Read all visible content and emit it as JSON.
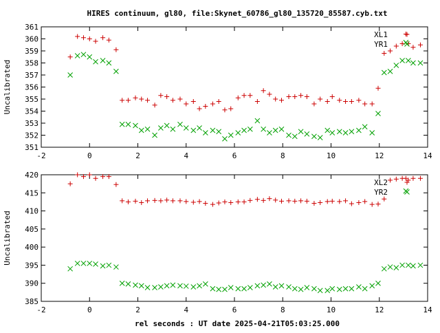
{
  "title": "HIRES continuum, gl80, file:Skynet_60786_gl80_135720_85587.cyb.txt",
  "xlabel": "rel seconds : UT date 2025-04-21T05:03:25.000",
  "colors": {
    "red": "#cc0000",
    "green": "#00a000",
    "axis": "#000000"
  },
  "chart_data": [
    {
      "type": "scatter",
      "xlabel": "",
      "ylabel": "Uncalibrated",
      "xlim": [
        -2,
        14
      ],
      "ylim": [
        351,
        361
      ],
      "xticks": [
        "-2",
        "0",
        "2",
        "4",
        "6",
        "8",
        "10",
        "12",
        "14"
      ],
      "yticks": [
        "351",
        "352",
        "353",
        "354",
        "355",
        "356",
        "357",
        "358",
        "359",
        "360",
        "361"
      ],
      "legend": "top-right",
      "series": [
        {
          "name": "XL1",
          "marker": "plus",
          "color": "#cc0000",
          "x": [
            -0.8,
            -0.5,
            -0.25,
            0,
            0.25,
            0.55,
            0.8,
            1.1,
            1.35,
            1.6,
            1.9,
            2.15,
            2.4,
            2.7,
            2.95,
            3.2,
            3.45,
            3.75,
            4.0,
            4.3,
            4.55,
            4.8,
            5.1,
            5.35,
            5.6,
            5.85,
            6.15,
            6.4,
            6.65,
            6.95,
            7.2,
            7.45,
            7.7,
            7.95,
            8.25,
            8.5,
            8.75,
            9.0,
            9.3,
            9.55,
            9.85,
            10.05,
            10.35,
            10.6,
            10.85,
            11.15,
            11.4,
            11.7,
            11.95,
            12.2,
            12.45,
            12.7,
            12.95,
            13.1,
            13.2,
            13.4,
            13.7
          ],
          "y": [
            358.5,
            360.2,
            360.1,
            360.0,
            359.8,
            360.1,
            359.9,
            359.1,
            354.9,
            354.9,
            355.1,
            355.0,
            354.9,
            354.5,
            355.3,
            355.2,
            354.9,
            355.0,
            354.6,
            354.8,
            354.2,
            354.4,
            354.6,
            354.8,
            354.1,
            354.2,
            355.1,
            355.3,
            355.3,
            354.8,
            355.7,
            355.4,
            355.0,
            354.9,
            355.2,
            355.2,
            355.3,
            355.2,
            354.6,
            355.0,
            354.8,
            355.2,
            354.9,
            354.8,
            354.8,
            354.9,
            354.6,
            354.6,
            355.9,
            358.8,
            359.0,
            359.4,
            359.6,
            360.4,
            359.6,
            359.3,
            359.5
          ]
        },
        {
          "name": "YR1",
          "marker": "x",
          "color": "#00a000",
          "x": [
            -0.8,
            -0.5,
            -0.25,
            0,
            0.25,
            0.55,
            0.8,
            1.1,
            1.35,
            1.6,
            1.9,
            2.15,
            2.4,
            2.7,
            2.95,
            3.2,
            3.45,
            3.75,
            4.0,
            4.3,
            4.55,
            4.8,
            5.1,
            5.35,
            5.6,
            5.85,
            6.15,
            6.4,
            6.65,
            6.95,
            7.2,
            7.45,
            7.7,
            7.95,
            8.25,
            8.5,
            8.75,
            9.0,
            9.3,
            9.55,
            9.85,
            10.05,
            10.35,
            10.6,
            10.85,
            11.15,
            11.4,
            11.7,
            11.95,
            12.2,
            12.45,
            12.7,
            12.95,
            13.1,
            13.2,
            13.4,
            13.7
          ],
          "y": [
            357.0,
            358.6,
            358.7,
            358.5,
            358.1,
            358.2,
            358.0,
            357.3,
            352.9,
            352.9,
            352.8,
            352.4,
            352.5,
            352.0,
            352.6,
            352.8,
            352.5,
            352.9,
            352.6,
            352.4,
            352.6,
            352.2,
            352.4,
            352.3,
            351.7,
            352.0,
            352.2,
            352.4,
            352.5,
            353.2,
            352.5,
            352.2,
            352.4,
            352.5,
            352.0,
            351.9,
            352.3,
            352.1,
            351.9,
            351.8,
            352.4,
            352.2,
            352.3,
            352.2,
            352.3,
            352.4,
            352.7,
            352.2,
            353.8,
            357.2,
            357.3,
            357.8,
            358.2,
            359.7,
            358.2,
            358.0,
            358.0
          ]
        }
      ]
    },
    {
      "type": "scatter",
      "xlabel": "rel seconds : UT date 2025-04-21T05:03:25.000",
      "ylabel": "Uncalibrated",
      "xlim": [
        -2,
        14
      ],
      "ylim": [
        385,
        420
      ],
      "xticks": [
        "-2",
        "0",
        "2",
        "4",
        "6",
        "8",
        "10",
        "12",
        "14"
      ],
      "yticks": [
        "385",
        "390",
        "395",
        "400",
        "405",
        "410",
        "415",
        "420"
      ],
      "legend": "top-right",
      "series": [
        {
          "name": "XL2",
          "marker": "plus",
          "color": "#cc0000",
          "x": [
            -0.8,
            -0.5,
            -0.25,
            0,
            0.25,
            0.55,
            0.8,
            1.1,
            1.35,
            1.6,
            1.9,
            2.15,
            2.4,
            2.7,
            2.95,
            3.2,
            3.45,
            3.75,
            4.0,
            4.3,
            4.55,
            4.8,
            5.1,
            5.35,
            5.6,
            5.85,
            6.15,
            6.4,
            6.65,
            6.95,
            7.2,
            7.45,
            7.7,
            7.95,
            8.25,
            8.5,
            8.75,
            9.0,
            9.3,
            9.55,
            9.85,
            10.05,
            10.35,
            10.6,
            10.85,
            11.15,
            11.4,
            11.7,
            11.95,
            12.2,
            12.45,
            12.7,
            12.95,
            13.1,
            13.2,
            13.4,
            13.7
          ],
          "y": [
            417.5,
            420.0,
            419.5,
            420.0,
            419.0,
            419.5,
            419.5,
            417.3,
            412.8,
            412.5,
            412.7,
            412.3,
            412.8,
            412.9,
            412.8,
            413.0,
            412.8,
            412.8,
            412.6,
            412.4,
            412.6,
            412.1,
            411.8,
            412.2,
            412.5,
            412.3,
            412.5,
            412.5,
            412.9,
            413.2,
            412.9,
            413.4,
            413.0,
            412.7,
            412.8,
            412.7,
            412.8,
            412.7,
            412.1,
            412.3,
            412.6,
            412.7,
            412.6,
            412.8,
            412.0,
            412.3,
            412.6,
            411.8,
            411.9,
            413.3,
            418.5,
            418.8,
            419.0,
            419.0,
            418.5,
            419.0,
            419.0
          ]
        },
        {
          "name": "YR2",
          "marker": "x",
          "color": "#00a000",
          "x": [
            -0.8,
            -0.5,
            -0.25,
            0,
            0.25,
            0.55,
            0.8,
            1.1,
            1.35,
            1.6,
            1.9,
            2.15,
            2.4,
            2.7,
            2.95,
            3.2,
            3.45,
            3.75,
            4.0,
            4.3,
            4.55,
            4.8,
            5.1,
            5.35,
            5.6,
            5.85,
            6.15,
            6.4,
            6.65,
            6.95,
            7.2,
            7.45,
            7.7,
            7.95,
            8.25,
            8.5,
            8.75,
            9.0,
            9.3,
            9.55,
            9.85,
            10.05,
            10.35,
            10.6,
            10.85,
            11.15,
            11.4,
            11.7,
            11.95,
            12.2,
            12.45,
            12.7,
            12.95,
            13.1,
            13.2,
            13.4,
            13.7
          ],
          "y": [
            394.0,
            395.5,
            395.5,
            395.5,
            395.3,
            394.8,
            395.0,
            394.5,
            390.0,
            389.8,
            389.5,
            389.3,
            388.8,
            388.8,
            389.0,
            389.3,
            389.5,
            389.3,
            389.2,
            389.0,
            389.3,
            389.8,
            388.5,
            388.3,
            388.3,
            388.8,
            388.5,
            388.5,
            388.8,
            389.3,
            389.5,
            389.8,
            389.0,
            389.3,
            389.0,
            388.5,
            388.3,
            388.8,
            388.5,
            388.0,
            388.0,
            388.5,
            388.3,
            388.5,
            388.5,
            389.0,
            388.5,
            389.3,
            390.0,
            394.0,
            394.5,
            394.3,
            395.0,
            415.5,
            395.0,
            394.8,
            395.0
          ]
        }
      ]
    }
  ]
}
